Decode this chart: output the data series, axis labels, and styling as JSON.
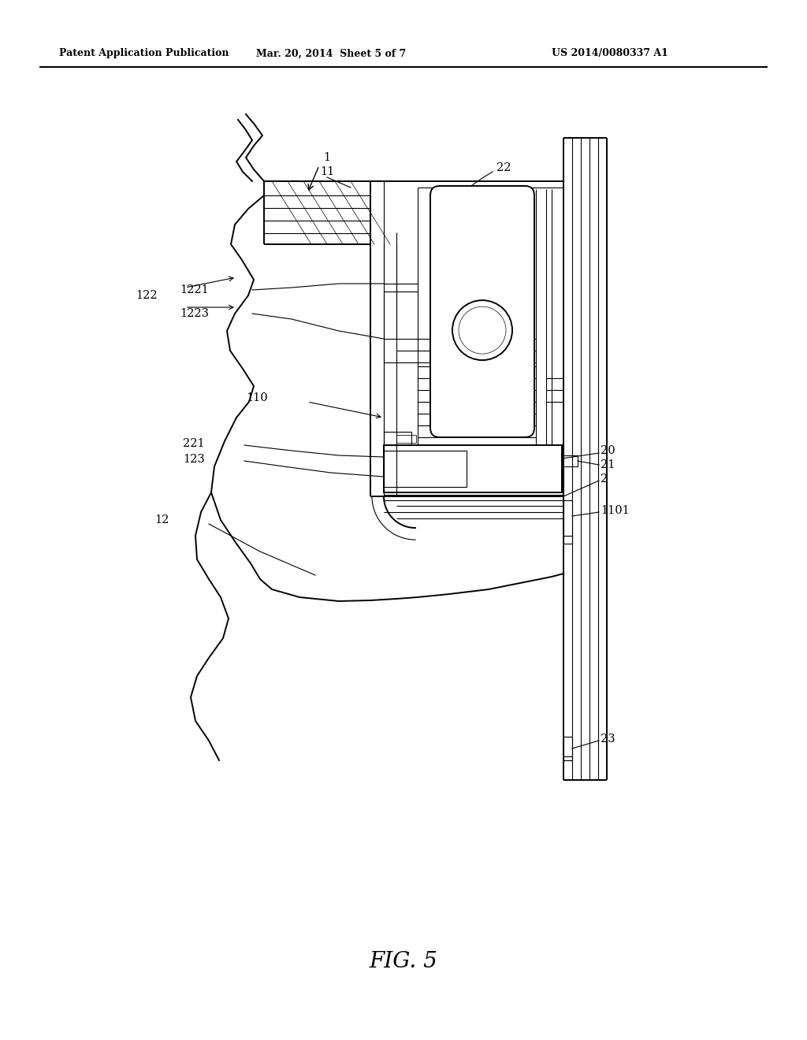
{
  "bg_color": "#ffffff",
  "line_color": "#000000",
  "header_left": "Patent Application Publication",
  "header_mid": "Mar. 20, 2014  Sheet 5 of 7",
  "header_right": "US 2014/0080337 A1",
  "figure_label": "FIG. 5",
  "lw_thin": 0.8,
  "lw_med": 1.4,
  "lw_thick": 2.0,
  "label_fontsize": 10.5
}
